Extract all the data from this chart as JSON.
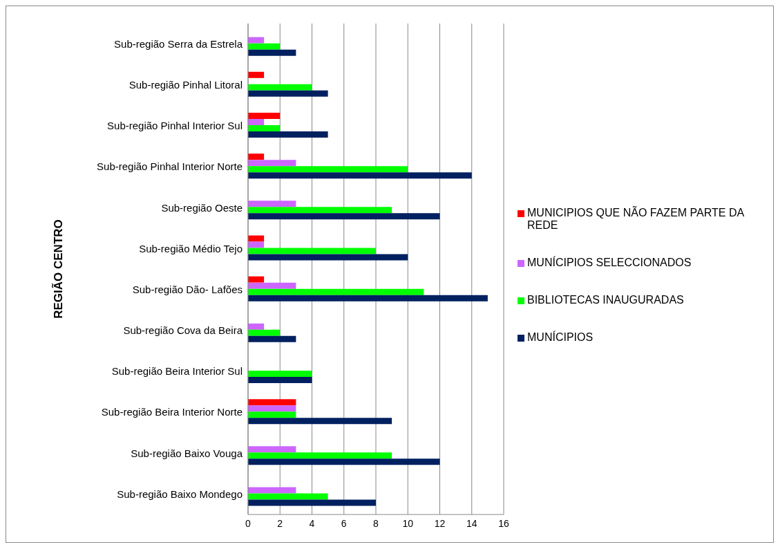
{
  "chart_data": {
    "type": "bar",
    "orientation": "horizontal",
    "ylabel": "REGIÃO CENTRO",
    "categories": [
      "Sub-região Serra da Estrela",
      "Sub-região Pinhal Litoral",
      "Sub-região Pinhal Interior Sul",
      "Sub-região Pinhal Interior Norte",
      "Sub-região Oeste",
      "Sub-região Médio Tejo",
      "Sub-região Dão- Lafões",
      "Sub-região Cova da Beira",
      "Sub-região Beira Interior Sul",
      "Sub-região Beira Interior Norte",
      "Sub-região Baixo Vouga",
      "Sub-região Baixo Mondego"
    ],
    "series": [
      {
        "name": "MUNICIPIOS QUE NÃO FAZEM PARTE DA REDE",
        "color": "#ff0000",
        "values": [
          null,
          1,
          2,
          1,
          null,
          1,
          1,
          null,
          null,
          3,
          null,
          null
        ]
      },
      {
        "name": "MUNÍCIPIOS SELECCIONADOS",
        "color": "#cc66ff",
        "values": [
          1,
          null,
          1,
          3,
          3,
          1,
          3,
          1,
          null,
          3,
          3,
          3
        ]
      },
      {
        "name": "BIBLIOTECAS INAUGURADAS",
        "color": "#00ff00",
        "values": [
          2,
          4,
          2,
          10,
          9,
          8,
          11,
          2,
          4,
          3,
          9,
          5
        ]
      },
      {
        "name": "MUNÍCIPIOS",
        "color": "#002060",
        "values": [
          3,
          5,
          5,
          14,
          12,
          10,
          15,
          3,
          4,
          9,
          12,
          8
        ]
      }
    ],
    "xlim": [
      0,
      16
    ],
    "xticks": [
      0,
      2,
      4,
      6,
      8,
      10,
      12,
      14,
      16
    ],
    "grid": "x",
    "legend": "right"
  }
}
